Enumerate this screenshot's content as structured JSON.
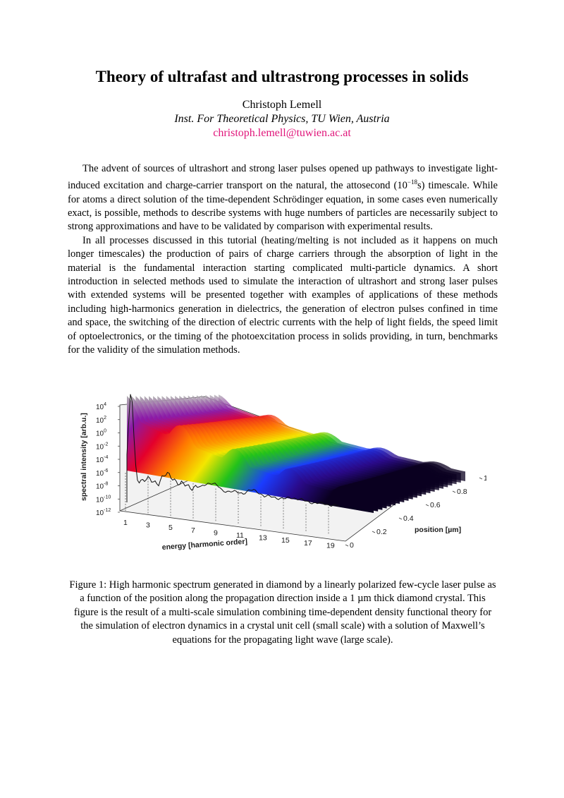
{
  "title": "Theory of ultrafast and ultrastrong processes in solids",
  "author": "Christoph Lemell",
  "affiliation": "Inst. For Theoretical Physics, TU Wien, Austria",
  "email": "christoph.lemell@tuwien.ac.at",
  "abstract": {
    "p1_before_sup": "The advent of sources of ultrashort and strong laser pulses opened up pathways to investigate light-induced excitation and charge-carrier transport on the natural, the attosecond (10",
    "p1_sup": "−18",
    "p1_after_sup": "s) timescale. While for atoms a direct solution of the time-dependent Schrödinger equation, in some cases even numerically exact, is possible, methods to describe systems with huge numbers of particles are necessarily subject to strong approximations and have to be validated by comparison with experimental results.",
    "p2": "In all processes discussed in this tutorial (heating/melting is not included as it happens on much longer timescales) the production of pairs of charge carriers through the absorption of light in the material is the fundamental interaction starting complicated multi-particle dynamics. A short introduction in selected methods used to simulate the interaction of ultrashort and strong laser pulses with extended systems will be presented together with examples of applications of these methods including high-harmonics generation in dielectrics, the generation of electron pulses confined in time and space, the switching of the direction of electric currents with the help of light fields, the speed limit of optoelectronics, or the timing of the photoexcitation process in solids providing, in turn, benchmarks for the validity of the simulation methods."
  },
  "figure": {
    "ylabel": "spectral intensity [arb.u.]",
    "xlabel": "energy [harmonic order]",
    "zlabel": "position [µm]",
    "y_ticks": [
      {
        "base": "10",
        "exp": "4"
      },
      {
        "base": "10",
        "exp": "2"
      },
      {
        "base": "10",
        "exp": "0"
      },
      {
        "base": "10",
        "exp": "-2"
      },
      {
        "base": "10",
        "exp": "-4"
      },
      {
        "base": "10",
        "exp": "-6"
      },
      {
        "base": "10",
        "exp": "-8"
      },
      {
        "base": "10",
        "exp": "-10"
      },
      {
        "base": "10",
        "exp": "-12"
      }
    ],
    "x_ticks": [
      "1",
      "3",
      "5",
      "7",
      "9",
      "11",
      "13",
      "15",
      "17",
      "19"
    ],
    "z_ticks": [
      "0",
      "0.2",
      "0.4",
      "0.6",
      "0.8",
      "1"
    ],
    "colors": [
      "#aaaaaa",
      "#8b1aa8",
      "#e4002b",
      "#ff7a00",
      "#f4e600",
      "#22c21a",
      "#1a3cff",
      "#140044"
    ]
  },
  "caption": "Figure 1: High harmonic spectrum generated in diamond by a linearly polarized few-cycle laser pulse as a function of the position along the propagation direction inside a 1 µm thick diamond crystal. This figure is the result of a multi-scale simulation combining time-dependent density functional theory for the simulation of electron dynamics in a crystal unit cell (small scale) with a solution of Maxwell’s equations for the propagating light wave (large scale)."
}
